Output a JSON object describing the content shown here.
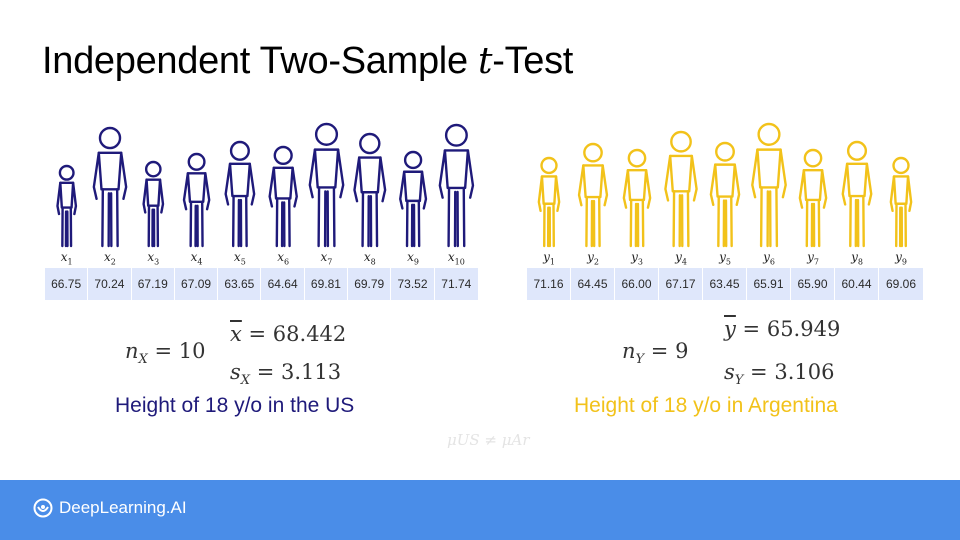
{
  "title": {
    "text": "Independent Two-Sample ",
    "italic": "t",
    "suffix": "-Test"
  },
  "us": {
    "subs": [
      "1",
      "2",
      "3",
      "4",
      "5",
      "6",
      "7",
      "8",
      "9",
      "10"
    ],
    "values": [
      "66.75",
      "70.24",
      "67.19",
      "67.09",
      "63.65",
      "64.64",
      "69.81",
      "69.79",
      "73.52",
      "71.74"
    ],
    "n": "10",
    "mean": "68.442",
    "sd": "3.113",
    "caption": "Height of 18 y/o in the US",
    "color": "#1f1a7a"
  },
  "ar": {
    "subs": [
      "1",
      "2",
      "3",
      "4",
      "5",
      "6",
      "7",
      "8",
      "9"
    ],
    "values": [
      "71.16",
      "64.45",
      "66.00",
      "67.17",
      "63.45",
      "65.91",
      "65.90",
      "60.44",
      "69.06"
    ],
    "n": "9",
    "mean": "65.949",
    "sd": "3.106",
    "caption": "Height of 18 y/o in Argentina",
    "color": "#f2c21a"
  },
  "hypothesis": "μUS ≠ μAr",
  "footer": {
    "brand": "DeepLearning.AI",
    "logo_icon": "deeplearning-logo-icon",
    "bg": "#4a8de8"
  }
}
